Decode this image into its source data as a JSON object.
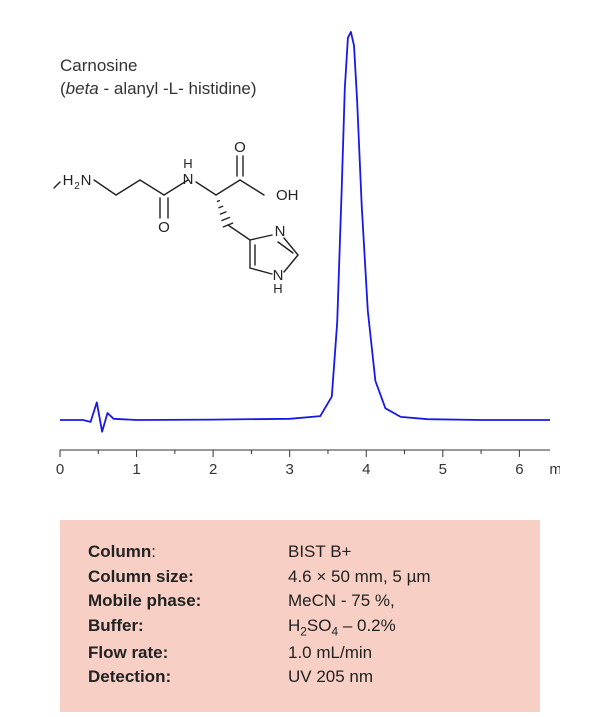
{
  "title": {
    "line1": "Carnosine",
    "line2_prefix": "(",
    "line2_ital1": "beta",
    "line2_mid": " - alanyl -L- histidine)",
    "fontsize": 17,
    "color": "#333333"
  },
  "structure": {
    "labels": {
      "h2n": "H",
      "h2n_sub": "2",
      "h2n_n": "N",
      "nh_h": "H",
      "nh_n": "N",
      "o1": "O",
      "o2": "O",
      "o3": "O",
      "oh": "OH",
      "ring_n1": "N",
      "ring_n2_n": "N",
      "ring_n2_h": "H"
    },
    "stroke": "#222222",
    "stroke_width": 1.4,
    "font_family": "Arial",
    "font_size": 15
  },
  "chromatogram": {
    "type": "line",
    "line_color": "#1818e8",
    "line_width": 1.8,
    "baseline_y": 0,
    "xlim": [
      0,
      6.4
    ],
    "ylim": [
      -5,
      100
    ],
    "axis_color": "#333333",
    "tick_fontsize": 15,
    "tick_color": "#333333",
    "xticks": [
      0,
      1,
      2,
      3,
      4,
      5,
      6
    ],
    "xtick_labels": [
      "0",
      "1",
      "2",
      "3",
      "4",
      "5",
      "6"
    ],
    "x_unit": "min",
    "points": [
      [
        0.0,
        0.0
      ],
      [
        0.3,
        0.0
      ],
      [
        0.4,
        -0.5
      ],
      [
        0.48,
        4.5
      ],
      [
        0.55,
        -3.0
      ],
      [
        0.62,
        1.8
      ],
      [
        0.7,
        0.3
      ],
      [
        1.0,
        0.0
      ],
      [
        2.0,
        0.1
      ],
      [
        3.0,
        0.3
      ],
      [
        3.4,
        1.0
      ],
      [
        3.55,
        6.0
      ],
      [
        3.62,
        25.0
      ],
      [
        3.68,
        60.0
      ],
      [
        3.72,
        85.0
      ],
      [
        3.76,
        98.0
      ],
      [
        3.8,
        99.5
      ],
      [
        3.84,
        96.0
      ],
      [
        3.88,
        82.0
      ],
      [
        3.94,
        55.0
      ],
      [
        4.02,
        28.0
      ],
      [
        4.12,
        10.0
      ],
      [
        4.25,
        3.0
      ],
      [
        4.45,
        0.8
      ],
      [
        4.8,
        0.2
      ],
      [
        5.5,
        0.0
      ],
      [
        6.4,
        0.0
      ]
    ]
  },
  "parameters": {
    "background": "#f7cfc5",
    "fontsize": 17,
    "text_color": "#222222",
    "rows": [
      {
        "key_bold": "Column",
        "key_tail": ":",
        "value_plain": "BIST B+"
      },
      {
        "key_bold": "Column size:",
        "key_tail": "",
        "value_plain": "4.6 × 50 mm, 5 µm"
      },
      {
        "key_bold": "Mobile phase:",
        "key_tail": "",
        "value_plain": "MeCN - 75 %,"
      },
      {
        "key_bold": "Buffer:",
        "key_tail": "",
        "value_html": "H<sub>2</sub>SO<sub>4</sub> – 0.2%"
      },
      {
        "key_bold": "Flow rate:",
        "key_tail": "",
        "value_plain": "1.0 mL/min"
      },
      {
        "key_bold": "Detection:",
        "key_tail": "",
        "value_plain": "UV 205 nm"
      }
    ]
  }
}
